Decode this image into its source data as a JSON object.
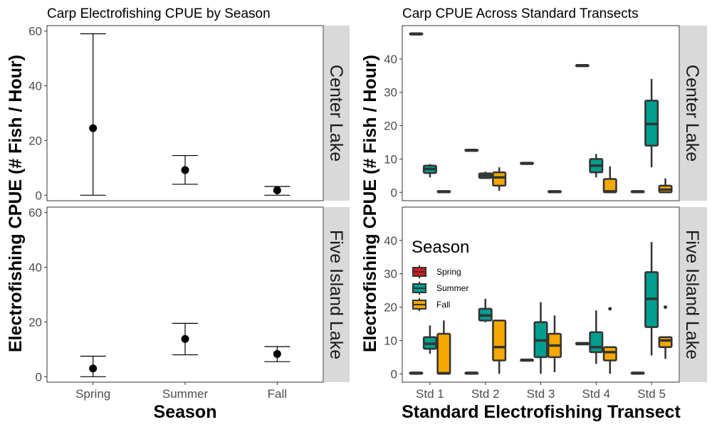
{
  "colors": {
    "Spring": "#d7191c",
    "Summer": "#009e8f",
    "Fall": "#f5a800",
    "strip": "#d9d9d9",
    "outline": "#333333"
  },
  "chart_data": [
    {
      "type": "errorbar",
      "title": "Carp Electrofishing CPUE by Season",
      "xlabel": "Season",
      "ylabel": "Electrofishing CPUE (# Fish / Hour)",
      "categories": [
        "Spring",
        "Summer",
        "Fall"
      ],
      "ylim": [
        -2,
        62
      ],
      "yticks": [
        "0",
        "20",
        "40",
        "60"
      ],
      "facets": [
        {
          "name": "Center Lake",
          "mean": [
            24.5,
            9.2,
            1.8
          ],
          "lower": [
            0.0,
            4.0,
            0.0
          ],
          "upper": [
            59.0,
            14.5,
            3.2
          ]
        },
        {
          "name": "Five Island Lake",
          "mean": [
            3.0,
            13.8,
            8.3
          ],
          "lower": [
            0.0,
            8.0,
            5.5
          ],
          "upper": [
            7.5,
            19.5,
            11.0
          ]
        }
      ]
    },
    {
      "type": "box",
      "title": "Carp CPUE Across Standard Transects",
      "xlabel": "Standard Electrofishing Transect",
      "ylabel": "Electrofishing CPUE (# Fish / Hour)",
      "categories": [
        "Std 1",
        "Std 2",
        "Std 3",
        "Std 4",
        "Std 5"
      ],
      "series_names": [
        "Spring",
        "Summer",
        "Fall"
      ],
      "legend_title": "Season",
      "legend_position": "inside-left",
      "ylim": [
        -2.5,
        50
      ],
      "yticks": [
        "0",
        "10",
        "20",
        "30",
        "40"
      ],
      "facets": [
        {
          "name": "Center Lake",
          "boxes": [
            {
              "category": "Std 1",
              "series": "Spring",
              "q1": 47.3,
              "median": 47.5,
              "q3": 47.7,
              "lo": 47.3,
              "hi": 47.7,
              "outliers": []
            },
            {
              "category": "Std 1",
              "series": "Summer",
              "q1": 5.8,
              "median": 7.0,
              "q3": 8.0,
              "lo": 4.5,
              "hi": 8.5,
              "outliers": []
            },
            {
              "category": "Std 1",
              "series": "Fall",
              "q1": 0.0,
              "median": 0.2,
              "q3": 0.4,
              "lo": 0.0,
              "hi": 0.4,
              "outliers": []
            },
            {
              "category": "Std 2",
              "series": "Spring",
              "q1": 12.4,
              "median": 12.6,
              "q3": 12.8,
              "lo": 12.4,
              "hi": 12.8,
              "outliers": []
            },
            {
              "category": "Std 2",
              "series": "Summer",
              "q1": 4.3,
              "median": 5.0,
              "q3": 5.7,
              "lo": 4.0,
              "hi": 6.2,
              "outliers": []
            },
            {
              "category": "Std 2",
              "series": "Fall",
              "q1": 2.0,
              "median": 4.5,
              "q3": 6.0,
              "lo": 0.5,
              "hi": 7.5,
              "outliers": []
            },
            {
              "category": "Std 3",
              "series": "Spring",
              "q1": 8.5,
              "median": 8.7,
              "q3": 8.9,
              "lo": 8.5,
              "hi": 8.9,
              "outliers": []
            },
            {
              "category": "Std 3",
              "series": "Fall",
              "q1": 0.0,
              "median": 0.2,
              "q3": 0.4,
              "lo": 0.0,
              "hi": 0.4,
              "outliers": []
            },
            {
              "category": "Std 4",
              "series": "Spring",
              "q1": 37.8,
              "median": 38.0,
              "q3": 38.2,
              "lo": 37.8,
              "hi": 38.2,
              "outliers": []
            },
            {
              "category": "Std 4",
              "series": "Summer",
              "q1": 6.0,
              "median": 8.0,
              "q3": 10.0,
              "lo": 4.5,
              "hi": 11.5,
              "outliers": []
            },
            {
              "category": "Std 4",
              "series": "Fall",
              "q1": 0.0,
              "median": 0.3,
              "q3": 4.0,
              "lo": 0.0,
              "hi": 7.8,
              "outliers": []
            },
            {
              "category": "Std 5",
              "series": "Spring",
              "q1": 0.0,
              "median": 0.2,
              "q3": 0.4,
              "lo": 0.0,
              "hi": 0.4,
              "outliers": []
            },
            {
              "category": "Std 5",
              "series": "Summer",
              "q1": 14.0,
              "median": 20.5,
              "q3": 27.5,
              "lo": 7.5,
              "hi": 34.0,
              "outliers": []
            },
            {
              "category": "Std 5",
              "series": "Fall",
              "q1": 0.0,
              "median": 0.8,
              "q3": 2.0,
              "lo": 0.0,
              "hi": 4.2,
              "outliers": []
            }
          ]
        },
        {
          "name": "Five Island Lake",
          "boxes": [
            {
              "category": "Std 1",
              "series": "Spring",
              "q1": 0.0,
              "median": 0.2,
              "q3": 0.4,
              "lo": 0.0,
              "hi": 0.4,
              "outliers": []
            },
            {
              "category": "Std 1",
              "series": "Summer",
              "q1": 7.5,
              "median": 9.0,
              "q3": 11.0,
              "lo": 6.0,
              "hi": 14.5,
              "outliers": []
            },
            {
              "category": "Std 1",
              "series": "Fall",
              "q1": 0.0,
              "median": 0.2,
              "q3": 12.0,
              "lo": 0.0,
              "hi": 16.0,
              "outliers": []
            },
            {
              "category": "Std 2",
              "series": "Spring",
              "q1": 0.0,
              "median": 0.2,
              "q3": 0.4,
              "lo": 0.0,
              "hi": 0.4,
              "outliers": []
            },
            {
              "category": "Std 2",
              "series": "Summer",
              "q1": 16.0,
              "median": 17.5,
              "q3": 19.5,
              "lo": 15.5,
              "hi": 22.5,
              "outliers": []
            },
            {
              "category": "Std 2",
              "series": "Fall",
              "q1": 4.0,
              "median": 8.0,
              "q3": 16.0,
              "lo": 0.0,
              "hi": 16.0,
              "outliers": []
            },
            {
              "category": "Std 3",
              "series": "Spring",
              "q1": 3.9,
              "median": 4.1,
              "q3": 4.3,
              "lo": 3.9,
              "hi": 4.3,
              "outliers": []
            },
            {
              "category": "Std 3",
              "series": "Summer",
              "q1": 5.0,
              "median": 10.0,
              "q3": 15.5,
              "lo": 0.0,
              "hi": 21.5,
              "outliers": []
            },
            {
              "category": "Std 3",
              "series": "Fall",
              "q1": 5.0,
              "median": 8.5,
              "q3": 12.0,
              "lo": 0.5,
              "hi": 17.5,
              "outliers": []
            },
            {
              "category": "Std 4",
              "series": "Spring",
              "q1": 8.8,
              "median": 9.0,
              "q3": 9.3,
              "lo": 8.8,
              "hi": 9.3,
              "outliers": []
            },
            {
              "category": "Std 4",
              "series": "Summer",
              "q1": 6.5,
              "median": 8.0,
              "q3": 12.5,
              "lo": 3.0,
              "hi": 19.0,
              "outliers": []
            },
            {
              "category": "Std 4",
              "series": "Fall",
              "q1": 4.0,
              "median": 6.5,
              "q3": 8.0,
              "lo": 0.0,
              "hi": 8.0,
              "outliers": [
                19.5
              ]
            },
            {
              "category": "Std 5",
              "series": "Spring",
              "q1": 0.0,
              "median": 0.2,
              "q3": 0.4,
              "lo": 0.0,
              "hi": 0.4,
              "outliers": []
            },
            {
              "category": "Std 5",
              "series": "Summer",
              "q1": 14.0,
              "median": 22.5,
              "q3": 30.5,
              "lo": 5.5,
              "hi": 39.5,
              "outliers": []
            },
            {
              "category": "Std 5",
              "series": "Fall",
              "q1": 8.0,
              "median": 10.0,
              "q3": 11.0,
              "lo": 4.5,
              "hi": 11.0,
              "outliers": [
                20.0
              ]
            }
          ]
        }
      ]
    }
  ]
}
